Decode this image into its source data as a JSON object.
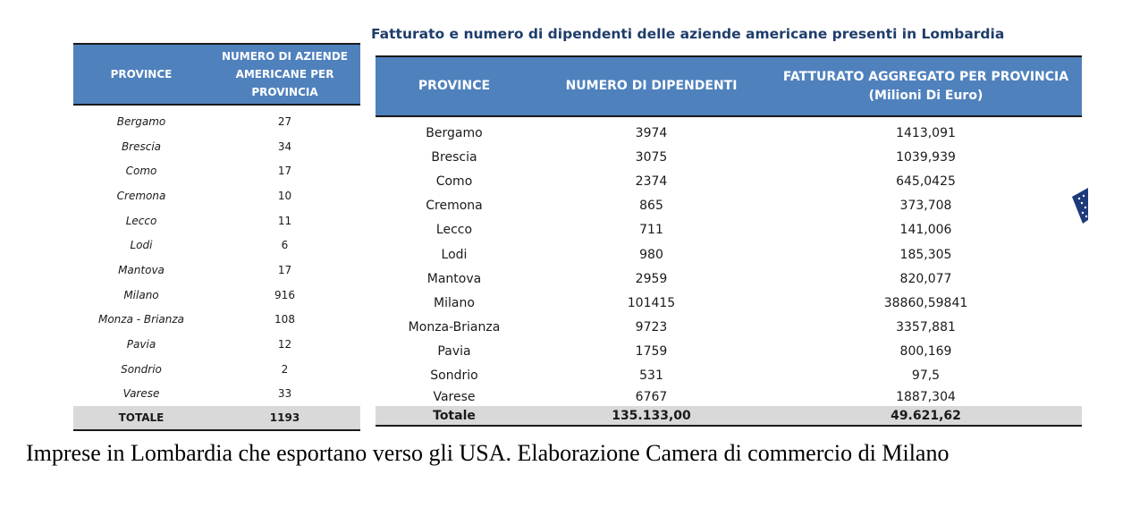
{
  "title": "Fatturato e numero di dipendenti delle aziende americane presenti in Lombardia",
  "left_table": {
    "headers": [
      "PROVINCE",
      "NUMERO DI AZIENDE AMERICANE PER PROVINCIA"
    ],
    "rows": [
      [
        "Bergamo",
        "27"
      ],
      [
        "Brescia",
        "34"
      ],
      [
        "Como",
        "17"
      ],
      [
        "Cremona",
        "10"
      ],
      [
        "Lecco",
        "11"
      ],
      [
        "Lodi",
        "6"
      ],
      [
        "Mantova",
        "17"
      ],
      [
        "Milano",
        "916"
      ],
      [
        "Monza - Brianza",
        "108"
      ],
      [
        "Pavia",
        "12"
      ],
      [
        "Sondrio",
        "2"
      ],
      [
        "Varese",
        "33"
      ]
    ],
    "total": [
      "TOTALE",
      "1193"
    ]
  },
  "right_table": {
    "headers": [
      "PROVINCE",
      "NUMERO DI DIPENDENTI",
      "FATTURATO AGGREGATO PER PROVINCIA",
      "(Milioni Di Euro)"
    ],
    "rows": [
      [
        "Bergamo",
        "3974",
        "1413,091"
      ],
      [
        "Brescia",
        "3075",
        "1039,939"
      ],
      [
        "Como",
        "2374",
        "645,0425"
      ],
      [
        "Cremona",
        "865",
        "373,708"
      ],
      [
        "Lecco",
        "711",
        "141,006"
      ],
      [
        "Lodi",
        "980",
        "185,305"
      ],
      [
        "Mantova",
        "2959",
        "820,077"
      ],
      [
        "Milano",
        "101415",
        "38860,59841"
      ],
      [
        "Monza-Brianza",
        "9723",
        "3357,881"
      ],
      [
        "Pavia",
        "1759",
        "800,169"
      ],
      [
        "Sondrio",
        "531",
        "97,5"
      ],
      [
        "Varese",
        "6767",
        "1887,304"
      ]
    ],
    "total": [
      "Totale",
      "135.133,00",
      "49.621,62"
    ]
  },
  "flag_icon": "us-flag-icon",
  "caption": "Imprese in Lombardia che esportano verso gli USA. Elaborazione Camera di commercio di Milano"
}
